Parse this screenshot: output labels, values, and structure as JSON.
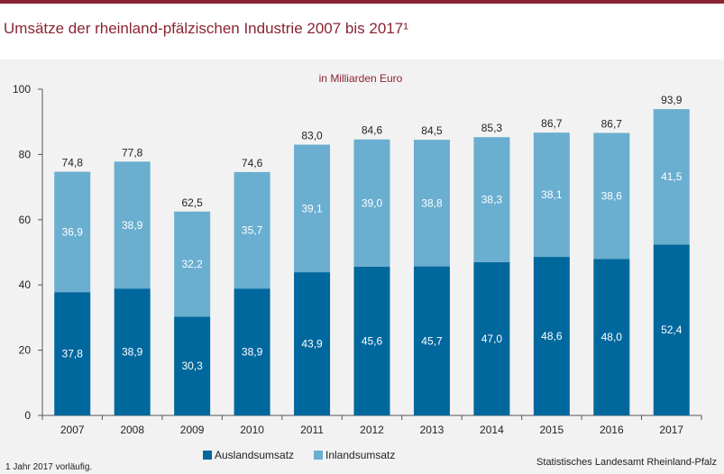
{
  "title": "Umsätze der rheinland-pfälzischen Industrie 2007 bis 2017¹",
  "footnote": "1 Jahr 2017 vorläufig.",
  "source": "Statistisches Landesamt Rheinland-Pfalz",
  "chart_data": {
    "type": "bar",
    "stacked": true,
    "unit_label": "in Milliarden Euro",
    "categories": [
      "2007",
      "2008",
      "2009",
      "2010",
      "2011",
      "2012",
      "2013",
      "2014",
      "2015",
      "2016",
      "2017"
    ],
    "series": [
      {
        "name": "Auslandsumsatz",
        "color": "#00689d",
        "values": [
          37.8,
          38.9,
          30.3,
          38.9,
          43.9,
          45.6,
          45.7,
          47.0,
          48.6,
          48.0,
          52.4
        ],
        "labels": [
          "37,8",
          "38,9",
          "30,3",
          "38,9",
          "43,9",
          "45,6",
          "45,7",
          "47,0",
          "48,6",
          "48,0",
          "52,4"
        ]
      },
      {
        "name": "Inlandsumsatz",
        "color": "#6aaed0",
        "values": [
          36.9,
          38.9,
          32.2,
          35.7,
          39.1,
          39.0,
          38.8,
          38.3,
          38.1,
          38.6,
          41.5
        ],
        "labels": [
          "36,9",
          "38,9",
          "32,2",
          "35,7",
          "39,1",
          "39,0",
          "38,8",
          "38,3",
          "38,1",
          "38,6",
          "41,5"
        ]
      }
    ],
    "totals": [
      74.8,
      77.8,
      62.5,
      74.6,
      83.0,
      84.6,
      84.5,
      85.3,
      86.7,
      86.7,
      93.9
    ],
    "total_labels": [
      "74,8",
      "77,8",
      "62,5",
      "74,6",
      "83,0",
      "84,6",
      "84,5",
      "85,3",
      "86,7",
      "86,7",
      "93,9"
    ],
    "yticks": [
      0,
      20,
      40,
      60,
      80,
      100
    ],
    "ylim": [
      0,
      100
    ],
    "grid": false,
    "legend_position": "bottom-center"
  }
}
